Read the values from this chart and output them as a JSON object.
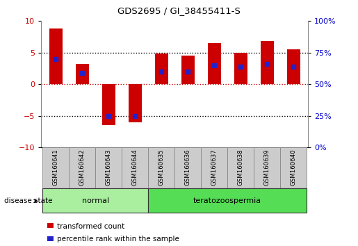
{
  "title": "GDS2695 / GI_38455411-S",
  "samples": [
    "GSM160641",
    "GSM160642",
    "GSM160643",
    "GSM160644",
    "GSM160635",
    "GSM160636",
    "GSM160637",
    "GSM160638",
    "GSM160639",
    "GSM160640"
  ],
  "bar_values": [
    8.8,
    3.2,
    -6.5,
    -6.0,
    4.8,
    4.5,
    6.5,
    5.0,
    6.8,
    5.5
  ],
  "blue_dot_values": [
    4.0,
    1.8,
    -5.0,
    -5.0,
    2.0,
    2.0,
    3.0,
    2.8,
    3.2,
    2.8
  ],
  "bar_color": "#cc0000",
  "blue_dot_color": "#2222cc",
  "ylim": [
    -10,
    10
  ],
  "yticks_left": [
    -10,
    -5,
    0,
    5,
    10
  ],
  "yticks_right_labels": [
    "0%",
    "25%",
    "50%",
    "75%",
    "100%"
  ],
  "yticks_right_vals": [
    -10,
    -5,
    0,
    5,
    10
  ],
  "ylabel_left_color": "#cc0000",
  "ylabel_right_color": "#0000cc",
  "groups": [
    {
      "label": "normal",
      "indices": [
        0,
        1,
        2,
        3
      ],
      "color": "#aaeea0"
    },
    {
      "label": "teratozoospermia",
      "indices": [
        4,
        5,
        6,
        7,
        8,
        9
      ],
      "color": "#55dd55"
    }
  ],
  "disease_state_label": "disease state",
  "hline_color": "#cc0000",
  "dotted_line_color": "#000000",
  "bar_width": 0.5,
  "sample_box_color": "#cccccc",
  "sample_box_edge": "#888888",
  "legend_items": [
    {
      "label": "transformed count",
      "color": "#cc0000"
    },
    {
      "label": "percentile rank within the sample",
      "color": "#2222cc"
    }
  ]
}
